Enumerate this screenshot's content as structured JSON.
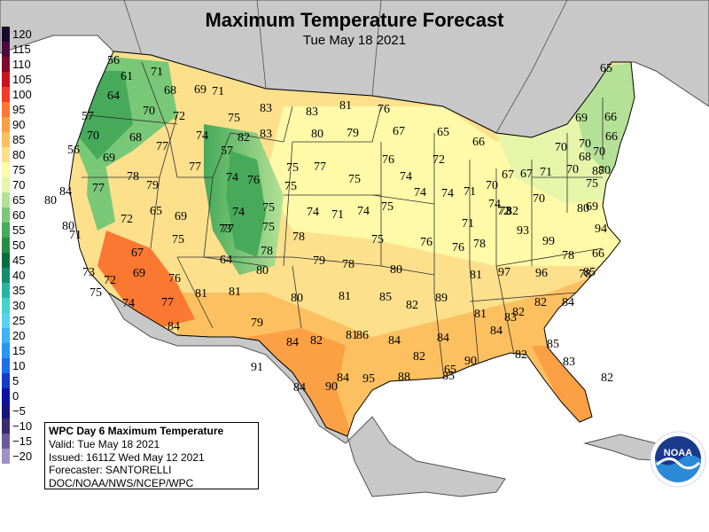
{
  "header": {
    "title": "Maximum Temperature Forecast",
    "subtitle": "Tue May 18 2021"
  },
  "legend": {
    "items": [
      {
        "label": "120",
        "color": "#1a0a2a"
      },
      {
        "label": "115",
        "color": "#4b0a3c"
      },
      {
        "label": "110",
        "color": "#7d0a28"
      },
      {
        "label": "105",
        "color": "#c8141e"
      },
      {
        "label": "100",
        "color": "#f03c28"
      },
      {
        "label": "95",
        "color": "#fa7832"
      },
      {
        "label": "90",
        "color": "#fca046"
      },
      {
        "label": "85",
        "color": "#fcc060"
      },
      {
        "label": "80",
        "color": "#fde08c"
      },
      {
        "label": "75",
        "color": "#fffaa8"
      },
      {
        "label": "70",
        "color": "#e6f5aa"
      },
      {
        "label": "65",
        "color": "#b4e196"
      },
      {
        "label": "60",
        "color": "#78c878"
      },
      {
        "label": "55",
        "color": "#46aa5a"
      },
      {
        "label": "50",
        "color": "#288c46"
      },
      {
        "label": "45",
        "color": "#0a6e3c"
      },
      {
        "label": "40",
        "color": "#148c6e"
      },
      {
        "label": "35",
        "color": "#28b4a0"
      },
      {
        "label": "30",
        "color": "#46d2c8"
      },
      {
        "label": "25",
        "color": "#5ad2f0"
      },
      {
        "label": "20",
        "color": "#3cb4f5"
      },
      {
        "label": "15",
        "color": "#2896f0"
      },
      {
        "label": "10",
        "color": "#1e6ee6"
      },
      {
        "label": "5",
        "color": "#143cc8"
      },
      {
        "label": "0",
        "color": "#0a14a0"
      },
      {
        "label": "−5",
        "color": "#14147d"
      },
      {
        "label": "−10",
        "color": "#3c286e"
      },
      {
        "label": "−15",
        "color": "#6e5a9b"
      },
      {
        "label": "−20",
        "color": "#a090c3"
      }
    ]
  },
  "info_box": {
    "title": "WPC Day 6 Maximum Temperature",
    "valid": "Valid: Tue May 18 2021",
    "issued": "Issued: 1611Z Wed May 12 2021",
    "forecaster": "Forecaster: SANTORELLI",
    "agency": "DOC/NOAA/NWS/NCEP/WPC"
  },
  "logo": {
    "text": "NOAA",
    "colors": {
      "ring": "#ffffff",
      "top": "#1a3a8c",
      "bottom": "#2a8ad8"
    }
  },
  "map_colors": {
    "water": "#ffffff",
    "foreign_land": "#c8c8c8",
    "border": "#505050"
  },
  "temperatures": [
    {
      "value": "56"
    },
    {
      "value": "61"
    },
    {
      "value": "71"
    },
    {
      "value": "68"
    },
    {
      "value": "69"
    },
    {
      "value": "71"
    },
    {
      "value": "64"
    },
    {
      "value": "70"
    },
    {
      "value": "72"
    },
    {
      "value": "57"
    },
    {
      "value": "70"
    },
    {
      "value": "68"
    },
    {
      "value": "77"
    },
    {
      "value": "74"
    },
    {
      "value": "56"
    },
    {
      "value": "69"
    },
    {
      "value": "77"
    },
    {
      "value": "57"
    },
    {
      "value": "82"
    },
    {
      "value": "75"
    },
    {
      "value": "83"
    },
    {
      "value": "83"
    },
    {
      "value": "83"
    },
    {
      "value": "81"
    },
    {
      "value": "76"
    },
    {
      "value": "80"
    },
    {
      "value": "79"
    },
    {
      "value": "67"
    },
    {
      "value": "65"
    },
    {
      "value": "66"
    },
    {
      "value": "65"
    },
    {
      "value": "69"
    },
    {
      "value": "66"
    },
    {
      "value": "70"
    },
    {
      "value": "70"
    },
    {
      "value": "66"
    },
    {
      "value": "70"
    },
    {
      "value": "84"
    },
    {
      "value": "77"
    },
    {
      "value": "78"
    },
    {
      "value": "79"
    },
    {
      "value": "74"
    },
    {
      "value": "76"
    },
    {
      "value": "75"
    },
    {
      "value": "77"
    },
    {
      "value": "75"
    },
    {
      "value": "75"
    },
    {
      "value": "76"
    },
    {
      "value": "72"
    },
    {
      "value": "74"
    },
    {
      "value": "74"
    },
    {
      "value": "74"
    },
    {
      "value": "71"
    },
    {
      "value": "70"
    },
    {
      "value": "67"
    },
    {
      "value": "67"
    },
    {
      "value": "71"
    },
    {
      "value": "70"
    },
    {
      "value": "68"
    },
    {
      "value": "87"
    },
    {
      "value": "80"
    },
    {
      "value": "75"
    },
    {
      "value": "80"
    },
    {
      "value": "80"
    },
    {
      "value": "72"
    },
    {
      "value": "65"
    },
    {
      "value": "69"
    },
    {
      "value": "73"
    },
    {
      "value": "74"
    },
    {
      "value": "75"
    },
    {
      "value": "75"
    },
    {
      "value": "74"
    },
    {
      "value": "71"
    },
    {
      "value": "74"
    },
    {
      "value": "75"
    },
    {
      "value": "71"
    },
    {
      "value": "74"
    },
    {
      "value": "73"
    },
    {
      "value": "82"
    },
    {
      "value": "70"
    },
    {
      "value": "80"
    },
    {
      "value": "69"
    },
    {
      "value": "71"
    },
    {
      "value": "75"
    },
    {
      "value": "77"
    },
    {
      "value": "78"
    },
    {
      "value": "78"
    },
    {
      "value": "75"
    },
    {
      "value": "76"
    },
    {
      "value": "76"
    },
    {
      "value": "78"
    },
    {
      "value": "72"
    },
    {
      "value": "93"
    },
    {
      "value": "99"
    },
    {
      "value": "94"
    },
    {
      "value": "66"
    },
    {
      "value": "67"
    },
    {
      "value": "69"
    },
    {
      "value": "72"
    },
    {
      "value": "73"
    },
    {
      "value": "75"
    },
    {
      "value": "76"
    },
    {
      "value": "64"
    },
    {
      "value": "79"
    },
    {
      "value": "78"
    },
    {
      "value": "80"
    },
    {
      "value": "80"
    },
    {
      "value": "81"
    },
    {
      "value": "97"
    },
    {
      "value": "96"
    },
    {
      "value": "78"
    },
    {
      "value": "78"
    },
    {
      "value": "74"
    },
    {
      "value": "77"
    },
    {
      "value": "81"
    },
    {
      "value": "81"
    },
    {
      "value": "80"
    },
    {
      "value": "81"
    },
    {
      "value": "85"
    },
    {
      "value": "82"
    },
    {
      "value": "89"
    },
    {
      "value": "85"
    },
    {
      "value": "82"
    },
    {
      "value": "84"
    },
    {
      "value": "84"
    },
    {
      "value": "79"
    },
    {
      "value": "81"
    },
    {
      "value": "83"
    },
    {
      "value": "82"
    },
    {
      "value": "84"
    },
    {
      "value": "82"
    },
    {
      "value": "81"
    },
    {
      "value": "86"
    },
    {
      "value": "84"
    },
    {
      "value": "82"
    },
    {
      "value": "84"
    },
    {
      "value": "90"
    },
    {
      "value": "84"
    },
    {
      "value": "82"
    },
    {
      "value": "85"
    },
    {
      "value": "83"
    },
    {
      "value": "82"
    },
    {
      "value": "91"
    },
    {
      "value": "84"
    },
    {
      "value": "90"
    },
    {
      "value": "84"
    },
    {
      "value": "95"
    },
    {
      "value": "88"
    },
    {
      "value": "85"
    },
    {
      "value": "65"
    }
  ]
}
